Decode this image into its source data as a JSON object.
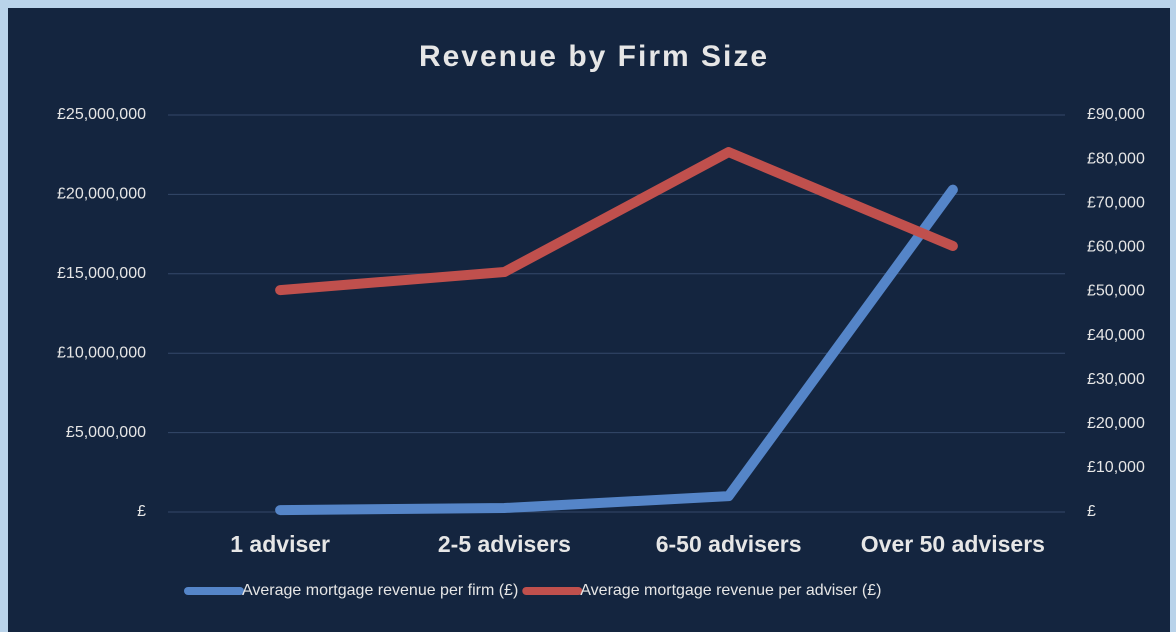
{
  "chart_data": {
    "type": "line",
    "title": "Revenue by Firm Size",
    "categories": [
      "1 adviser",
      "2-5 advisers",
      "6-50 advisers",
      "Over 50 advisers"
    ],
    "series": [
      {
        "name": "Average mortgage revenue per firm (£)",
        "color": "#5585c8",
        "values": [
          120000,
          250000,
          1000000,
          20300000
        ]
      },
      {
        "name": "Average mortgage revenue per adviser (£)",
        "color": "#c0504d",
        "axis": "y2",
        "values": [
          50300,
          54400,
          81600,
          60300
        ]
      }
    ],
    "ylim": [
      0,
      25000000
    ],
    "yticks": [
      {
        "value": 0,
        "label": "£"
      },
      {
        "value": 5000000,
        "label": "£5,000,000"
      },
      {
        "value": 10000000,
        "label": "£10,000,000"
      },
      {
        "value": 15000000,
        "label": "£15,000,000"
      },
      {
        "value": 20000000,
        "label": "£20,000,000"
      },
      {
        "value": 25000000,
        "label": "£25,000,000"
      }
    ],
    "y2lim": [
      0,
      90000
    ],
    "y2ticks": [
      {
        "value": 0,
        "label": "£"
      },
      {
        "value": 10000,
        "label": "£10,000"
      },
      {
        "value": 20000,
        "label": "£20,000"
      },
      {
        "value": 30000,
        "label": "£30,000"
      },
      {
        "value": 40000,
        "label": "£40,000"
      },
      {
        "value": 50000,
        "label": "£50,000"
      },
      {
        "value": 60000,
        "label": "£60,000"
      },
      {
        "value": 70000,
        "label": "£70,000"
      },
      {
        "value": 80000,
        "label": "£80,000"
      },
      {
        "value": 90000,
        "label": "£90,000"
      }
    ],
    "grid": true,
    "legend": "bottom"
  }
}
